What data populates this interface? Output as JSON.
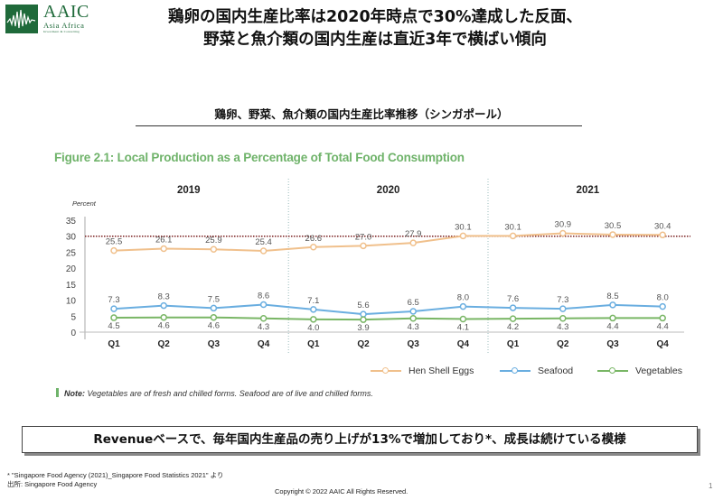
{
  "logo": {
    "name": "AAIC",
    "subtitle": "Asia Africa",
    "tagline": "Investment & Consulting",
    "icon": "waveform-logo-icon"
  },
  "headline": {
    "line1": "鶏卵の国内生産比率は2020年時点で30%達成した反面、",
    "line2": "野菜と魚介類の国内生産は直近3年で横ばい傾向"
  },
  "subtitle": "鶏卵、野菜、魚介類の国内生産比率推移（シンガポール）",
  "figure_title": "Figure 2.1: Local Production as a Percentage of Total Food Consumption",
  "colors": {
    "eggs": "#f0c08c",
    "seafood": "#6aaee0",
    "vegetables": "#79b665",
    "target_line": "#7a1f1f",
    "figure_title": "#6fb36a",
    "logo": "#1f6a3a"
  },
  "chart_data": {
    "type": "line",
    "title": "Figure 2.1: Local Production as a Percentage of Total Food Consumption",
    "ylabel": "Percent",
    "xlabel": "",
    "ylim": [
      0,
      35
    ],
    "yticks": [
      0,
      5,
      10,
      15,
      20,
      25,
      30,
      35
    ],
    "grid": false,
    "years": [
      "2019",
      "2020",
      "2021"
    ],
    "categories": [
      "Q1",
      "Q2",
      "Q3",
      "Q4",
      "Q1",
      "Q2",
      "Q3",
      "Q4",
      "Q1",
      "Q2",
      "Q3",
      "Q4"
    ],
    "reference_line": {
      "value": 30,
      "style": "dotted"
    },
    "legend_position": "bottom-right",
    "series": [
      {
        "name": "Hen Shell Eggs",
        "key": "eggs",
        "values": [
          25.5,
          26.1,
          25.9,
          25.4,
          26.6,
          27.0,
          27.9,
          30.1,
          30.1,
          30.9,
          30.5,
          30.4
        ],
        "labels": [
          "25.5",
          "26.1",
          "25.9",
          "25.4",
          "26.6",
          "27.0",
          "27.9",
          "30.1",
          "30.1",
          "30.9",
          "30.5",
          "30.4"
        ],
        "label_pos": "above"
      },
      {
        "name": "Seafood",
        "key": "seafood",
        "values": [
          7.3,
          8.3,
          7.5,
          8.6,
          7.1,
          5.6,
          6.5,
          8.0,
          7.6,
          7.3,
          8.5,
          8.0
        ],
        "labels": [
          "7.3",
          "8.3",
          "7.5",
          "8.6",
          "7.1",
          "5.6",
          "6.5",
          "8.0",
          "7.6",
          "7.3",
          "8.5",
          "8.0"
        ],
        "label_pos": "above"
      },
      {
        "name": "Vegetables",
        "key": "vegetables",
        "values": [
          4.5,
          4.6,
          4.6,
          4.3,
          4.0,
          3.9,
          4.3,
          4.1,
          4.2,
          4.3,
          4.4,
          4.4
        ],
        "labels": [
          "4.5",
          "4.6",
          "4.6",
          "4.3",
          "4.0",
          "3.9",
          "4.3",
          "4.1",
          "4.2",
          "4.3",
          "4.4",
          "4.4"
        ],
        "label_pos": "below"
      }
    ]
  },
  "note": {
    "label": "Note:",
    "text": " Vegetables are of fresh and chilled forms. Seafood are of live and chilled forms."
  },
  "callout": "Revenueベースで、毎年国内生産品の売り上げが13%で増加しており*、成長は続けている模様",
  "footnote": {
    "line1": "* \"Singapore Food Agency (2021)_Singapore Food Statistics 2021\" より",
    "line2": "出所: Singapore Food Agency"
  },
  "copyright": "Copyright © 2022 AAIC All Rights Reserved.",
  "page_number": "1"
}
